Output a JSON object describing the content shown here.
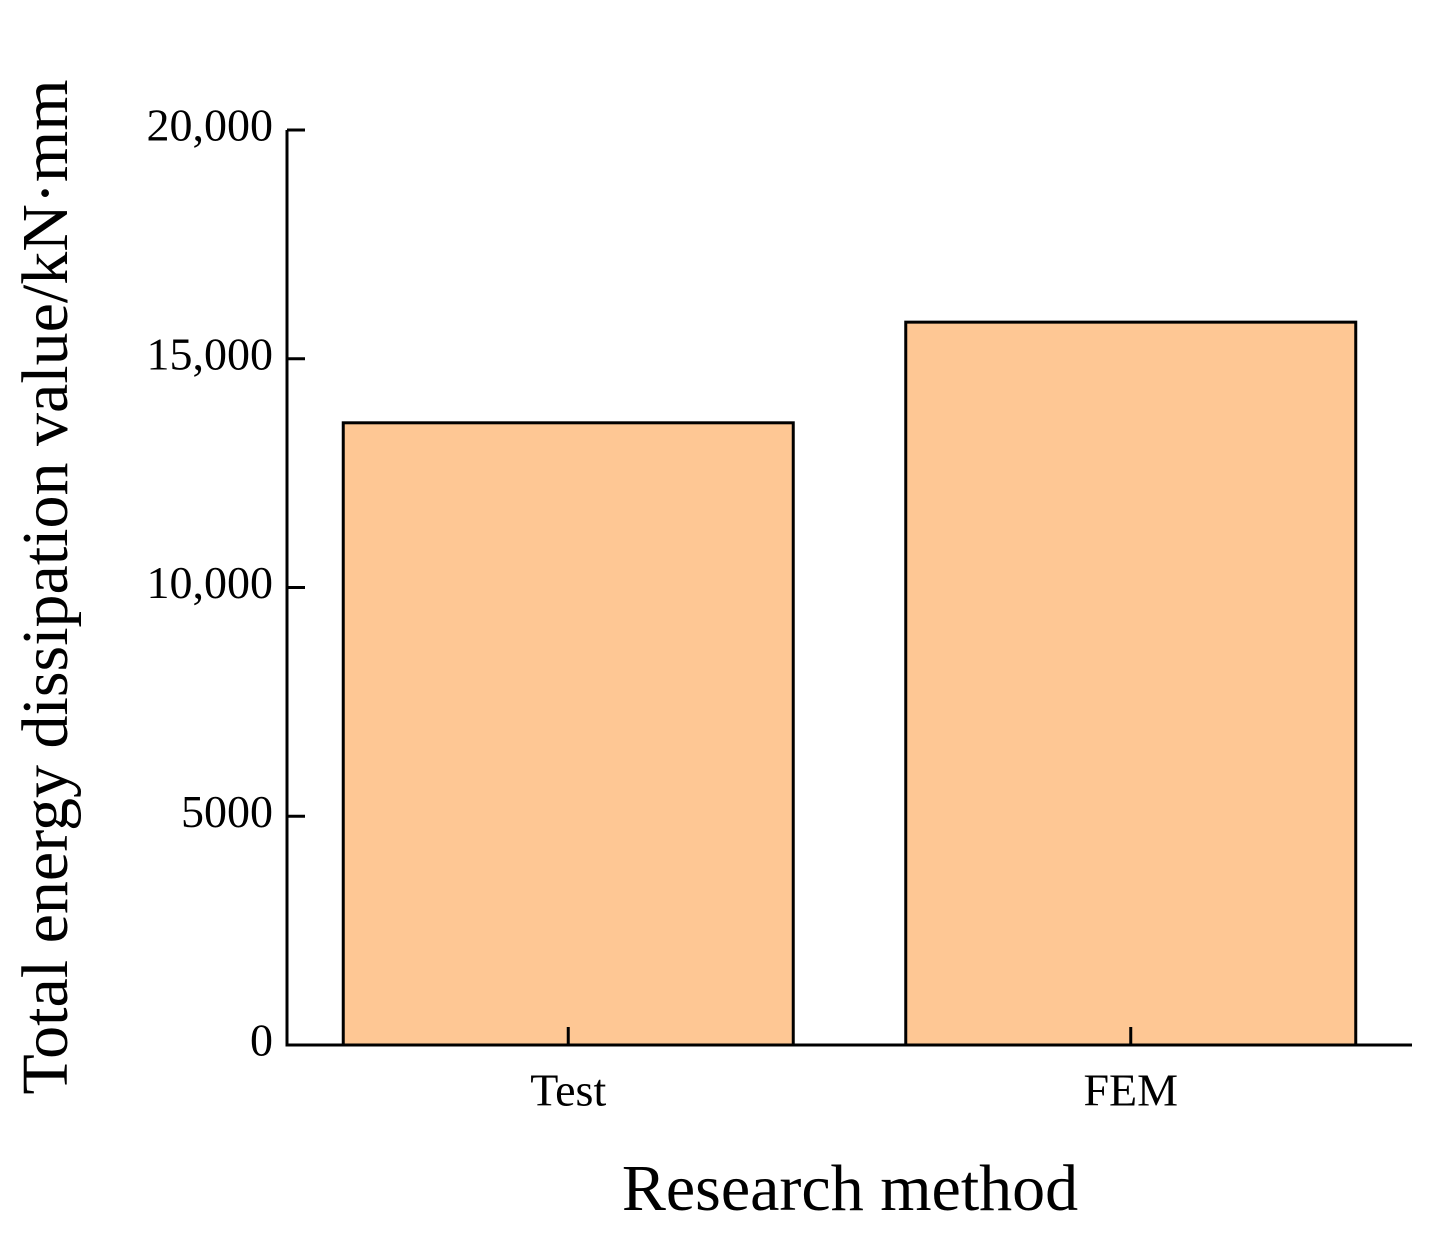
{
  "chart_data": {
    "type": "bar",
    "x_label": "Research method",
    "y_label": "Total energy dissipation value/kN·mm",
    "categories": [
      "Test",
      "FEM"
    ],
    "values": [
      13600,
      15800
    ],
    "color": "#fec794",
    "ylim": [
      0,
      20000
    ],
    "yticks": [
      0,
      5000,
      {
        "value": 10000,
        "label": "10,000"
      },
      {
        "value": 15000,
        "label": "15,000"
      },
      {
        "value": 20000,
        "label": "20,000"
      }
    ],
    "grid": false
  }
}
